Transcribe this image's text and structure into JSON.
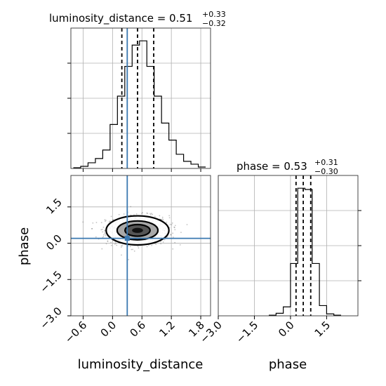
{
  "colors": {
    "truth": "#3a78b0",
    "hist": "#000000",
    "grid": "#b0b0b0",
    "scatter": "#555555"
  },
  "titles": {
    "ld": {
      "main": "luminosity_distance = 0.51",
      "sup": "+0.33",
      "sub": "−0.32"
    },
    "phase": {
      "main": "phase = 0.53",
      "sup": "+0.31",
      "sub": "−0.30"
    }
  },
  "axis_labels": {
    "x_left": "luminosity_distance",
    "x_right": "phase",
    "y_left": "phase"
  },
  "chart_data": [
    {
      "type": "bar",
      "panel": "luminosity_distance marginal",
      "title": "luminosity_distance = 0.51 (+0.33 / −0.32)",
      "bin_edges": [
        -0.8,
        -0.65,
        -0.5,
        -0.35,
        -0.2,
        -0.05,
        0.1,
        0.25,
        0.4,
        0.55,
        0.7,
        0.85,
        1.0,
        1.15,
        1.3,
        1.45,
        1.6,
        1.75,
        1.9
      ],
      "values": [
        0.5,
        1.5,
        4,
        7,
        13,
        31,
        51,
        72,
        87,
        90,
        72,
        51,
        32,
        20,
        10,
        5,
        3,
        1
      ],
      "xlim": [
        -0.85,
        2.0
      ],
      "quantile_lines": [
        0.19,
        0.51,
        0.84
      ],
      "truth": 0.3
    },
    {
      "type": "scatter",
      "panel": "2D posterior",
      "xlabel": "luminosity_distance",
      "ylabel": "phase",
      "x_ticks": [
        "−0.6",
        "0.0",
        "0.6",
        "1.2",
        "1.8"
      ],
      "x_tick_values": [
        -0.6,
        0.0,
        0.6,
        1.2,
        1.8
      ],
      "y_ticks": [
        "1.5",
        "0.0",
        "−1.5",
        "−3.0"
      ],
      "y_tick_values": [
        1.5,
        0.0,
        -1.5,
        -3.0
      ],
      "xlim": [
        -0.85,
        2.0
      ],
      "ylim": [
        -3.0,
        2.8
      ],
      "center": [
        0.51,
        0.53
      ],
      "spread": [
        0.32,
        0.3
      ],
      "contour_levels_sigma": [
        0.8,
        1.3,
        2.0
      ],
      "truth": [
        0.3,
        0.2
      ],
      "grid": true
    },
    {
      "type": "bar",
      "panel": "phase marginal",
      "title": "phase = 0.53 (+0.31 / −0.30)",
      "xlabel": "phase",
      "x_ticks": [
        "−3.0",
        "−1.5",
        "0.0",
        "1.5"
      ],
      "x_tick_values": [
        -3.0,
        -1.5,
        0.0,
        1.5
      ],
      "bin_edges": [
        -0.9,
        -0.6,
        -0.3,
        0.0,
        0.3,
        0.6,
        0.9,
        1.2,
        1.5,
        1.8,
        2.1
      ],
      "values": [
        0.5,
        2,
        7,
        41,
        100,
        99,
        41,
        8,
        1.5,
        0.5
      ],
      "xlim": [
        -3.0,
        2.8
      ],
      "quantile_lines": [
        0.23,
        0.53,
        0.84
      ],
      "grid": true
    }
  ]
}
